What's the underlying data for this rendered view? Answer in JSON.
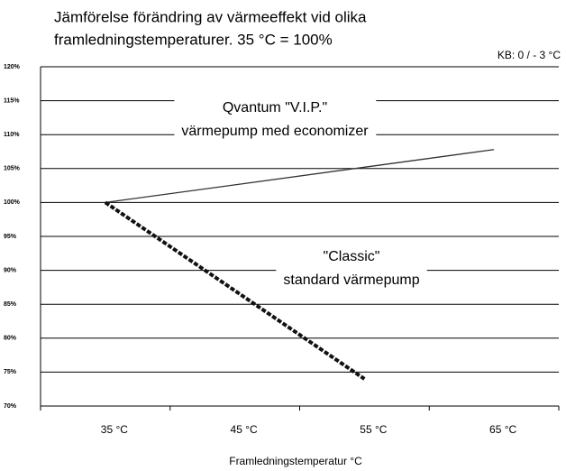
{
  "chart_data": {
    "type": "line",
    "title": [
      "Jämförelse förändring av värmeeffekt vid olika",
      "framledningstemperaturer.  35 °C = 100%"
    ],
    "subtitle": "KB: 0 / - 3 °C",
    "x_label": "Framledningstemperatur °C",
    "categories": [
      "35 °C",
      "45 °C",
      "55 °C",
      "65 °C"
    ],
    "series": [
      {
        "name": "Qvantum \"V.I.P.\" värmepump med economizer",
        "color": "#333333",
        "dashed": false,
        "values": [
          100,
          102.6,
          105.2,
          107.8
        ]
      },
      {
        "name": "\"Classic\" standard värmepump",
        "color": "#111111",
        "dashed": true,
        "values": [
          100,
          87,
          74,
          null
        ]
      }
    ],
    "annotations": [
      {
        "lines": [
          "Qvantum \"V.I.P.\"",
          "värmepump med economizer"
        ],
        "series": 0
      },
      {
        "lines": [
          "\"Classic\"",
          "standard värmepump"
        ],
        "series": 1
      }
    ],
    "ylim": [
      70,
      120
    ],
    "yticks": [
      {
        "value": 70,
        "label": "70%"
      },
      {
        "value": 75,
        "label": "75%"
      },
      {
        "value": 80,
        "label": "80%"
      },
      {
        "value": 85,
        "label": "85%"
      },
      {
        "value": 90,
        "label": "90%"
      },
      {
        "value": 95,
        "label": "95%"
      },
      {
        "value": 100,
        "label": "100%"
      },
      {
        "value": 105,
        "label": "105%"
      },
      {
        "value": 110,
        "label": "110%"
      },
      {
        "value": 115,
        "label": "115%"
      },
      {
        "value": 120,
        "label": "120%"
      }
    ],
    "grid": true
  }
}
